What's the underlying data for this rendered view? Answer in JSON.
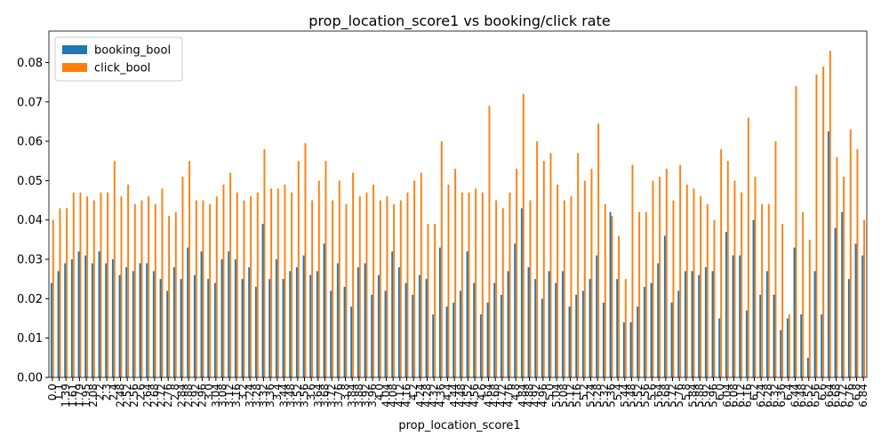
{
  "chart_data": {
    "type": "bar",
    "title": "prop_location_score1 vs booking/click rate",
    "xlabel": "prop_location_score1",
    "categories": [
      "0.0",
      "1.1",
      "1.39",
      "1.61",
      "1.79",
      "1.95",
      "2.08",
      "2.2",
      "2.3",
      "2.4",
      "2.48",
      "2.52",
      "2.56",
      "2.6",
      "2.64",
      "2.68",
      "2.72",
      "2.76",
      "2.8",
      "2.84",
      "2.88",
      "2.92",
      "2.96",
      "3.0",
      "3.04",
      "3.08",
      "3.12",
      "3.16",
      "3.2",
      "3.24",
      "3.28",
      "3.32",
      "3.36",
      "3.4",
      "3.44",
      "3.48",
      "3.52",
      "3.56",
      "3.6",
      "3.64",
      "3.68",
      "3.72",
      "3.76",
      "3.8",
      "3.84",
      "3.88",
      "3.92",
      "3.96",
      "4.0",
      "4.04",
      "4.08",
      "4.12",
      "4.16",
      "4.2",
      "4.24",
      "4.28",
      "4.32",
      "4.36",
      "4.4",
      "4.44",
      "4.48",
      "4.52",
      "4.56",
      "4.6",
      "4.64",
      "4.68",
      "4.72",
      "4.76",
      "4.8",
      "4.84",
      "4.88",
      "4.92",
      "4.96",
      "5.0",
      "5.04",
      "5.08",
      "5.12",
      "5.16",
      "5.2",
      "5.24",
      "5.28",
      "5.32",
      "5.36",
      "5.4",
      "5.44",
      "5.48",
      "5.52",
      "5.56",
      "5.6",
      "5.64",
      "5.68",
      "5.72",
      "5.76",
      "5.8",
      "5.84",
      "5.88",
      "5.92",
      "5.96",
      "6.0",
      "6.04",
      "6.08",
      "6.12",
      "6.16",
      "6.2",
      "6.24",
      "6.28",
      "6.32",
      "6.36",
      "6.4",
      "6.44",
      "6.48",
      "6.52",
      "6.56",
      "6.6",
      "6.64",
      "6.68",
      "6.72",
      "6.76",
      "6.8",
      "6.84"
    ],
    "series": [
      {
        "name": "booking_bool",
        "color": "#1f77b4",
        "values": [
          0.024,
          0.027,
          0.029,
          0.03,
          0.032,
          0.031,
          0.029,
          0.032,
          0.029,
          0.03,
          0.026,
          0.028,
          0.027,
          0.029,
          0.029,
          0.027,
          0.025,
          0.022,
          0.028,
          0.025,
          0.033,
          0.026,
          0.032,
          0.025,
          0.024,
          0.03,
          0.032,
          0.03,
          0.025,
          0.028,
          0.023,
          0.039,
          0.025,
          0.03,
          0.025,
          0.027,
          0.028,
          0.031,
          0.026,
          0.027,
          0.034,
          0.022,
          0.029,
          0.023,
          0.018,
          0.028,
          0.029,
          0.021,
          0.026,
          0.022,
          0.032,
          0.028,
          0.024,
          0.021,
          0.026,
          0.025,
          0.016,
          0.033,
          0.018,
          0.019,
          0.022,
          0.032,
          0.024,
          0.016,
          0.019,
          0.024,
          0.021,
          0.027,
          0.034,
          0.043,
          0.028,
          0.025,
          0.02,
          0.027,
          0.024,
          0.027,
          0.018,
          0.021,
          0.022,
          0.025,
          0.031,
          0.019,
          0.042,
          0.025,
          0.014,
          0.014,
          0.018,
          0.023,
          0.024,
          0.029,
          0.036,
          0.019,
          0.022,
          0.027,
          0.027,
          0.026,
          0.028,
          0.027,
          0.015,
          0.037,
          0.031,
          0.031,
          0.017,
          0.04,
          0.021,
          0.027,
          0.021,
          0.012,
          0.015,
          0.033,
          0.016,
          0.005,
          0.027,
          0.016,
          0.0625,
          0.038,
          0.042,
          0.025,
          0.034,
          0.031
        ]
      },
      {
        "name": "click_bool",
        "color": "#ff7f0e",
        "values": [
          0.04,
          0.043,
          0.043,
          0.047,
          0.047,
          0.046,
          0.045,
          0.047,
          0.047,
          0.055,
          0.046,
          0.049,
          0.044,
          0.045,
          0.046,
          0.044,
          0.048,
          0.041,
          0.042,
          0.051,
          0.055,
          0.045,
          0.045,
          0.044,
          0.046,
          0.049,
          0.052,
          0.047,
          0.045,
          0.046,
          0.047,
          0.058,
          0.048,
          0.048,
          0.049,
          0.047,
          0.055,
          0.0595,
          0.045,
          0.05,
          0.055,
          0.045,
          0.05,
          0.044,
          0.052,
          0.046,
          0.047,
          0.049,
          0.045,
          0.046,
          0.044,
          0.045,
          0.047,
          0.05,
          0.052,
          0.039,
          0.039,
          0.06,
          0.049,
          0.053,
          0.047,
          0.047,
          0.048,
          0.047,
          0.069,
          0.045,
          0.043,
          0.047,
          0.053,
          0.072,
          0.045,
          0.06,
          0.055,
          0.057,
          0.049,
          0.045,
          0.046,
          0.057,
          0.05,
          0.053,
          0.0645,
          0.044,
          0.041,
          0.036,
          0.025,
          0.054,
          0.042,
          0.042,
          0.05,
          0.051,
          0.053,
          0.045,
          0.054,
          0.049,
          0.048,
          0.046,
          0.044,
          0.04,
          0.058,
          0.055,
          0.05,
          0.047,
          0.066,
          0.051,
          0.044,
          0.044,
          0.06,
          0.039,
          0.016,
          0.074,
          0.042,
          0.035,
          0.077,
          0.079,
          0.083,
          0.056,
          0.051,
          0.063,
          0.058,
          0.04
        ]
      }
    ],
    "ylim": [
      0,
      0.088
    ],
    "yticks": [
      {
        "value": 0,
        "label": "0.00"
      },
      {
        "value": 0.01,
        "label": "0.01"
      },
      {
        "value": 0.02,
        "label": "0.02"
      },
      {
        "value": 0.03,
        "label": "0.03"
      },
      {
        "value": 0.04,
        "label": "0.04"
      },
      {
        "value": 0.05,
        "label": "0.05"
      },
      {
        "value": 0.06,
        "label": "0.06"
      },
      {
        "value": 0.07,
        "label": "0.07"
      },
      {
        "value": 0.08,
        "label": "0.08"
      }
    ],
    "legend": "upper left"
  }
}
